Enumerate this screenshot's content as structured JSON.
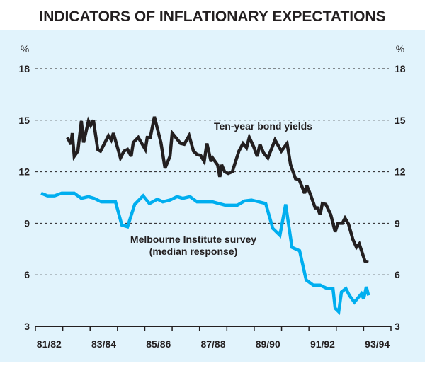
{
  "chart_data": {
    "type": "line",
    "title": "INDICATORS OF INFLATIONARY EXPECTATIONS",
    "ylabel_left": "%",
    "ylabel_right": "%",
    "ylim": [
      3,
      18
    ],
    "yticks": [
      3,
      6,
      9,
      12,
      15,
      18
    ],
    "xlim": [
      1981.5,
      1994.5
    ],
    "xtick_labels": [
      "81/82",
      "83/84",
      "85/86",
      "87/88",
      "89/90",
      "91/92",
      "93/94"
    ],
    "grid": true,
    "background": "#e1f3fc",
    "series": [
      {
        "name": "Ten-year bond yields",
        "color": "#231f20",
        "x": [
          1982.67,
          1982.8,
          1982.85,
          1982.92,
          1983.05,
          1983.18,
          1983.26,
          1983.44,
          1983.52,
          1983.62,
          1983.78,
          1983.88,
          1984.01,
          1984.17,
          1984.27,
          1984.35,
          1984.61,
          1984.74,
          1984.87,
          1985.0,
          1985.08,
          1985.26,
          1985.52,
          1985.59,
          1985.7,
          1985.85,
          1986.09,
          1986.24,
          1986.42,
          1986.5,
          1986.81,
          1986.94,
          1987.12,
          1987.28,
          1987.41,
          1987.54,
          1987.67,
          1987.77,
          1987.92,
          1987.98,
          1988.16,
          1988.24,
          1988.31,
          1988.42,
          1988.55,
          1988.7,
          1988.94,
          1989.09,
          1989.22,
          1989.32,
          1989.48,
          1989.61,
          1989.71,
          1989.84,
          1990.0,
          1990.26,
          1990.49,
          1990.7,
          1990.83,
          1991.01,
          1991.14,
          1991.34,
          1991.42,
          1991.55,
          1991.73,
          1991.81,
          1991.91,
          1991.99,
          1992.12,
          1992.3,
          1992.46,
          1992.56,
          1992.72,
          1992.82,
          1992.95,
          1993.11,
          1993.24,
          1993.34,
          1993.55,
          1993.68
        ],
        "y": [
          14.0,
          13.6,
          14.25,
          12.9,
          13.2,
          14.95,
          13.7,
          14.95,
          14.7,
          15.0,
          13.3,
          13.2,
          13.6,
          14.1,
          13.85,
          14.25,
          12.8,
          13.2,
          13.3,
          12.9,
          13.7,
          14.0,
          13.3,
          14.0,
          14.0,
          15.2,
          13.7,
          12.2,
          12.9,
          14.25,
          13.65,
          13.6,
          14.1,
          13.2,
          13.0,
          12.95,
          12.6,
          13.65,
          12.6,
          12.8,
          12.4,
          11.7,
          12.4,
          12.0,
          11.9,
          12.0,
          13.2,
          13.65,
          13.4,
          14.0,
          13.45,
          12.9,
          13.6,
          13.1,
          12.8,
          13.85,
          13.2,
          13.65,
          12.4,
          11.6,
          11.55,
          10.75,
          11.2,
          10.7,
          9.9,
          9.9,
          9.5,
          10.15,
          10.1,
          9.5,
          8.5,
          9.0,
          9.0,
          9.3,
          8.95,
          8.05,
          7.6,
          7.8,
          6.8,
          6.75
        ]
      },
      {
        "name": "Melbourne Institute survey",
        "name_line2": "(median response)",
        "color": "#00aeef",
        "x": [
          1981.71,
          1981.94,
          1982.2,
          1982.46,
          1982.92,
          1983.18,
          1983.44,
          1983.65,
          1983.91,
          1984.43,
          1984.66,
          1984.87,
          1985.13,
          1985.44,
          1985.67,
          1985.96,
          1986.16,
          1986.42,
          1986.68,
          1986.89,
          1987.15,
          1987.41,
          1987.98,
          1988.44,
          1988.88,
          1989.14,
          1989.4,
          1989.92,
          1990.18,
          1990.44,
          1990.65,
          1990.88,
          1991.16,
          1991.4,
          1991.66,
          1991.91,
          1992.17,
          1992.38,
          1992.46,
          1992.59,
          1992.69,
          1992.85,
          1992.98,
          1993.16,
          1993.42,
          1993.5,
          1993.6,
          1993.68
        ],
        "y": [
          10.75,
          10.6,
          10.6,
          10.75,
          10.75,
          10.45,
          10.55,
          10.45,
          10.25,
          10.25,
          8.9,
          8.8,
          10.1,
          10.6,
          10.15,
          10.4,
          10.25,
          10.35,
          10.55,
          10.45,
          10.55,
          10.25,
          10.25,
          10.05,
          10.05,
          10.3,
          10.35,
          10.15,
          8.7,
          8.3,
          10.1,
          7.6,
          7.4,
          5.7,
          5.4,
          5.4,
          5.2,
          5.2,
          4.05,
          3.85,
          5.0,
          5.2,
          4.8,
          4.4,
          4.9,
          4.6,
          5.3,
          4.8
        ]
      }
    ]
  }
}
